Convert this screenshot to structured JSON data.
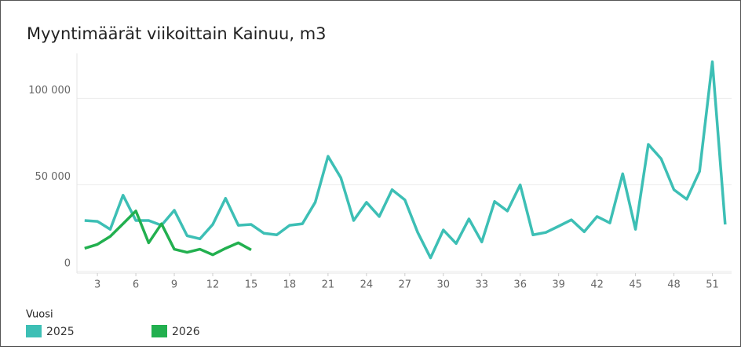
{
  "chart_data": {
    "type": "line",
    "title": "Myyntimäärät viikoittain Kainuu, m3",
    "legend_title": "Vuosi",
    "series": [
      {
        "name": "2025",
        "color": "#3dbfb5",
        "x": [
          2,
          3,
          4,
          5,
          6,
          7,
          8,
          9,
          10,
          11,
          12,
          13,
          14,
          15,
          16,
          17,
          18,
          19,
          20,
          21,
          22,
          23,
          24,
          25,
          26,
          27,
          28,
          29,
          30,
          31,
          32,
          33,
          34,
          35,
          36,
          37,
          38,
          39,
          40,
          41,
          42,
          43,
          44,
          45,
          46,
          47,
          48,
          49,
          50,
          51,
          52
        ],
        "values": [
          29400,
          28900,
          24300,
          44000,
          29400,
          29400,
          26600,
          35300,
          20600,
          18800,
          27100,
          42200,
          26600,
          27100,
          22000,
          21100,
          26600,
          27500,
          39900,
          66500,
          54100,
          29400,
          39900,
          31700,
          47200,
          41300,
          22500,
          7800,
          23900,
          16100,
          30300,
          17000,
          40400,
          34900,
          50000,
          21100,
          22500,
          26100,
          29800,
          22900,
          31700,
          28000,
          56400,
          24300,
          73400,
          65100,
          47200,
          41700,
          57800,
          121100,
          27100
        ]
      },
      {
        "name": "2026",
        "color": "#22b04f",
        "x": [
          2,
          3,
          4,
          5,
          6,
          7,
          8,
          9,
          10,
          11,
          12,
          13,
          14,
          15
        ],
        "values": [
          13300,
          15600,
          20200,
          27500,
          34900,
          16500,
          27500,
          12800,
          11000,
          12800,
          9600,
          13300,
          16500,
          12400
        ]
      }
    ],
    "xlim": [
      1.4,
      52.5
    ],
    "xticks": [
      3,
      6,
      9,
      12,
      15,
      18,
      21,
      24,
      27,
      30,
      33,
      36,
      39,
      42,
      45,
      48,
      51
    ],
    "ylim": [
      -1000,
      126000
    ],
    "yticks": [
      0,
      {
        "value": 50000,
        "label": "50 000"
      },
      {
        "value": 100000,
        "label": "100 000"
      }
    ],
    "grid": true
  }
}
